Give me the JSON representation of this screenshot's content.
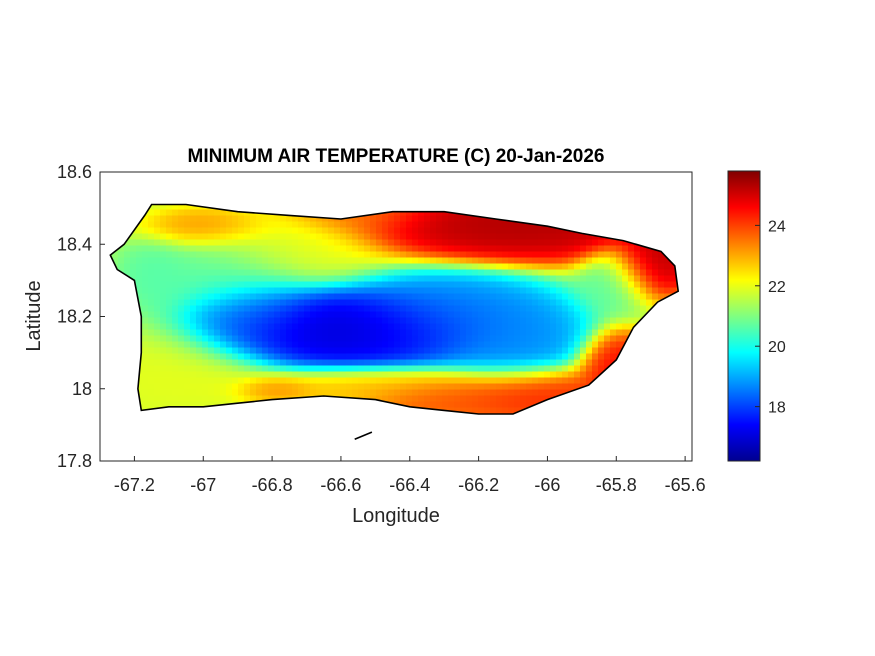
{
  "title": "MINIMUM AIR TEMPERATURE (C) 20-Jan-2026",
  "xlabel": "Longitude",
  "ylabel": "Latitude",
  "colors": {
    "axis": "#262626",
    "border": "#000000",
    "background": "#ffffff",
    "colormap": [
      "#00008f",
      "#0000ff",
      "#0080ff",
      "#00ffff",
      "#80ff80",
      "#ffff00",
      "#ff8000",
      "#ff0000",
      "#800000"
    ]
  },
  "chart_data": {
    "type": "heatmap",
    "title": "MINIMUM AIR TEMPERATURE (C) 20-Jan-2026",
    "xlabel": "Longitude",
    "ylabel": "Latitude",
    "xlim": [
      -67.3,
      -65.58
    ],
    "ylim": [
      17.8,
      18.6
    ],
    "x_ticks": [
      -67.2,
      -67,
      -66.8,
      -66.6,
      -66.4,
      -66.2,
      -66,
      -65.8,
      -65.6
    ],
    "x_tick_labels": [
      "-67.2",
      "-67",
      "-66.8",
      "-66.6",
      "-66.4",
      "-66.2",
      "-66",
      "-65.8",
      "-65.6"
    ],
    "y_ticks": [
      17.8,
      18,
      18.2,
      18.4,
      18.6
    ],
    "y_tick_labels": [
      "17.8",
      "18",
      "18.2",
      "18.4",
      "18.6"
    ],
    "colorbar": {
      "colormap": "jet",
      "range": [
        16.2,
        25.8
      ],
      "ticks": [
        18,
        20,
        22,
        24
      ],
      "tick_labels": [
        "18",
        "20",
        "22",
        "24"
      ]
    },
    "grid": false,
    "outline": [
      [
        -67.27,
        18.37
      ],
      [
        -67.23,
        18.4
      ],
      [
        -67.17,
        18.48
      ],
      [
        -67.15,
        18.51
      ],
      [
        -67.05,
        18.51
      ],
      [
        -66.9,
        18.49
      ],
      [
        -66.75,
        18.48
      ],
      [
        -66.6,
        18.47
      ],
      [
        -66.45,
        18.49
      ],
      [
        -66.3,
        18.49
      ],
      [
        -66.15,
        18.47
      ],
      [
        -66.0,
        18.45
      ],
      [
        -65.9,
        18.43
      ],
      [
        -65.78,
        18.41
      ],
      [
        -65.67,
        18.38
      ],
      [
        -65.63,
        18.34
      ],
      [
        -65.62,
        18.27
      ],
      [
        -65.68,
        18.24
      ],
      [
        -65.75,
        18.17
      ],
      [
        -65.8,
        18.08
      ],
      [
        -65.88,
        18.01
      ],
      [
        -66.0,
        17.97
      ],
      [
        -66.1,
        17.93
      ],
      [
        -66.2,
        17.93
      ],
      [
        -66.3,
        17.94
      ],
      [
        -66.4,
        17.95
      ],
      [
        -66.5,
        17.97
      ],
      [
        -66.65,
        17.98
      ],
      [
        -66.8,
        17.97
      ],
      [
        -66.9,
        17.96
      ],
      [
        -67.0,
        17.95
      ],
      [
        -67.1,
        17.95
      ],
      [
        -67.18,
        17.94
      ],
      [
        -67.19,
        18.0
      ],
      [
        -67.18,
        18.1
      ],
      [
        -67.18,
        18.2
      ],
      [
        -67.2,
        18.3
      ],
      [
        -67.25,
        18.33
      ],
      [
        -67.27,
        18.37
      ]
    ],
    "offshore_island": [
      [
        -66.56,
        17.86
      ],
      [
        -66.51,
        17.88
      ]
    ],
    "features": [
      {
        "lon": -66.6,
        "lat": 18.16,
        "value": 16.8,
        "sx": 0.2,
        "sy": 0.05,
        "w": 3.0
      },
      {
        "lon": -66.3,
        "lat": 18.2,
        "value": 18.5,
        "sx": 0.15,
        "sy": 0.06,
        "w": 2.0
      },
      {
        "lon": -66.1,
        "lat": 18.13,
        "value": 18.6,
        "sx": 0.1,
        "sy": 0.06,
        "w": 1.8
      },
      {
        "lon": -66.85,
        "lat": 18.2,
        "value": 18.5,
        "sx": 0.1,
        "sy": 0.05,
        "w": 1.5
      },
      {
        "lon": -66.95,
        "lat": 18.3,
        "value": 20.5,
        "sx": 0.12,
        "sy": 0.06,
        "w": 1.0
      },
      {
        "lon": -67.15,
        "lat": 18.3,
        "value": 20.5,
        "sx": 0.06,
        "sy": 0.06,
        "w": 0.8
      },
      {
        "lon": -65.8,
        "lat": 18.3,
        "value": 20.5,
        "sx": 0.06,
        "sy": 0.05,
        "w": 1.0
      },
      {
        "lon": -67.1,
        "lat": 18.05,
        "value": 22.0,
        "sx": 0.15,
        "sy": 0.08,
        "w": 1.0
      },
      {
        "lon": -66.75,
        "lat": 18.38,
        "value": 22.0,
        "sx": 0.15,
        "sy": 0.06,
        "w": 0.8
      },
      {
        "lon": -66.1,
        "lat": 18.45,
        "value": 25.5,
        "sx": 0.22,
        "sy": 0.05,
        "w": 2.5
      },
      {
        "lon": -65.7,
        "lat": 18.35,
        "value": 25.5,
        "sx": 0.06,
        "sy": 0.05,
        "w": 2.0
      },
      {
        "lon": -65.8,
        "lat": 18.05,
        "value": 24.8,
        "sx": 0.06,
        "sy": 0.05,
        "w": 1.5
      },
      {
        "lon": -66.05,
        "lat": 17.98,
        "value": 24.5,
        "sx": 0.12,
        "sy": 0.04,
        "w": 1.5
      },
      {
        "lon": -66.3,
        "lat": 17.96,
        "value": 24.0,
        "sx": 0.12,
        "sy": 0.03,
        "w": 1.2
      },
      {
        "lon": -66.55,
        "lat": 18.48,
        "value": 23.5,
        "sx": 0.12,
        "sy": 0.03,
        "w": 1.0
      },
      {
        "lon": -66.5,
        "lat": 18.0,
        "value": 23.0,
        "sx": 0.2,
        "sy": 0.03,
        "w": 0.8
      },
      {
        "lon": -66.8,
        "lat": 17.99,
        "value": 23.5,
        "sx": 0.06,
        "sy": 0.02,
        "w": 0.8
      },
      {
        "lon": -67.0,
        "lat": 18.44,
        "value": 23.5,
        "sx": 0.1,
        "sy": 0.03,
        "w": 0.8
      }
    ],
    "background_value": 21.5
  }
}
